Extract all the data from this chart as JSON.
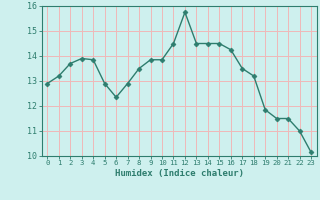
{
  "xlabel": "Humidex (Indice chaleur)",
  "x": [
    0,
    1,
    2,
    3,
    4,
    5,
    6,
    7,
    8,
    9,
    10,
    11,
    12,
    13,
    14,
    15,
    16,
    17,
    18,
    19,
    20,
    21,
    22,
    23
  ],
  "y": [
    12.9,
    13.2,
    13.7,
    13.9,
    13.85,
    12.9,
    12.35,
    12.9,
    13.5,
    13.85,
    13.85,
    14.5,
    15.75,
    14.5,
    14.5,
    14.5,
    14.25,
    13.5,
    13.2,
    11.85,
    11.5,
    11.5,
    11.0,
    10.15
  ],
  "line_color": "#2e7d6e",
  "marker": "D",
  "marker_size": 2.5,
  "background_color": "#cef0ee",
  "grid_color": "#f0b8b8",
  "axis_color": "#2e7d6e",
  "ylim": [
    10,
    16
  ],
  "xlim": [
    -0.5,
    23.5
  ],
  "yticks": [
    10,
    11,
    12,
    13,
    14,
    15,
    16
  ],
  "xticks": [
    0,
    1,
    2,
    3,
    4,
    5,
    6,
    7,
    8,
    9,
    10,
    11,
    12,
    13,
    14,
    15,
    16,
    17,
    18,
    19,
    20,
    21,
    22,
    23
  ]
}
